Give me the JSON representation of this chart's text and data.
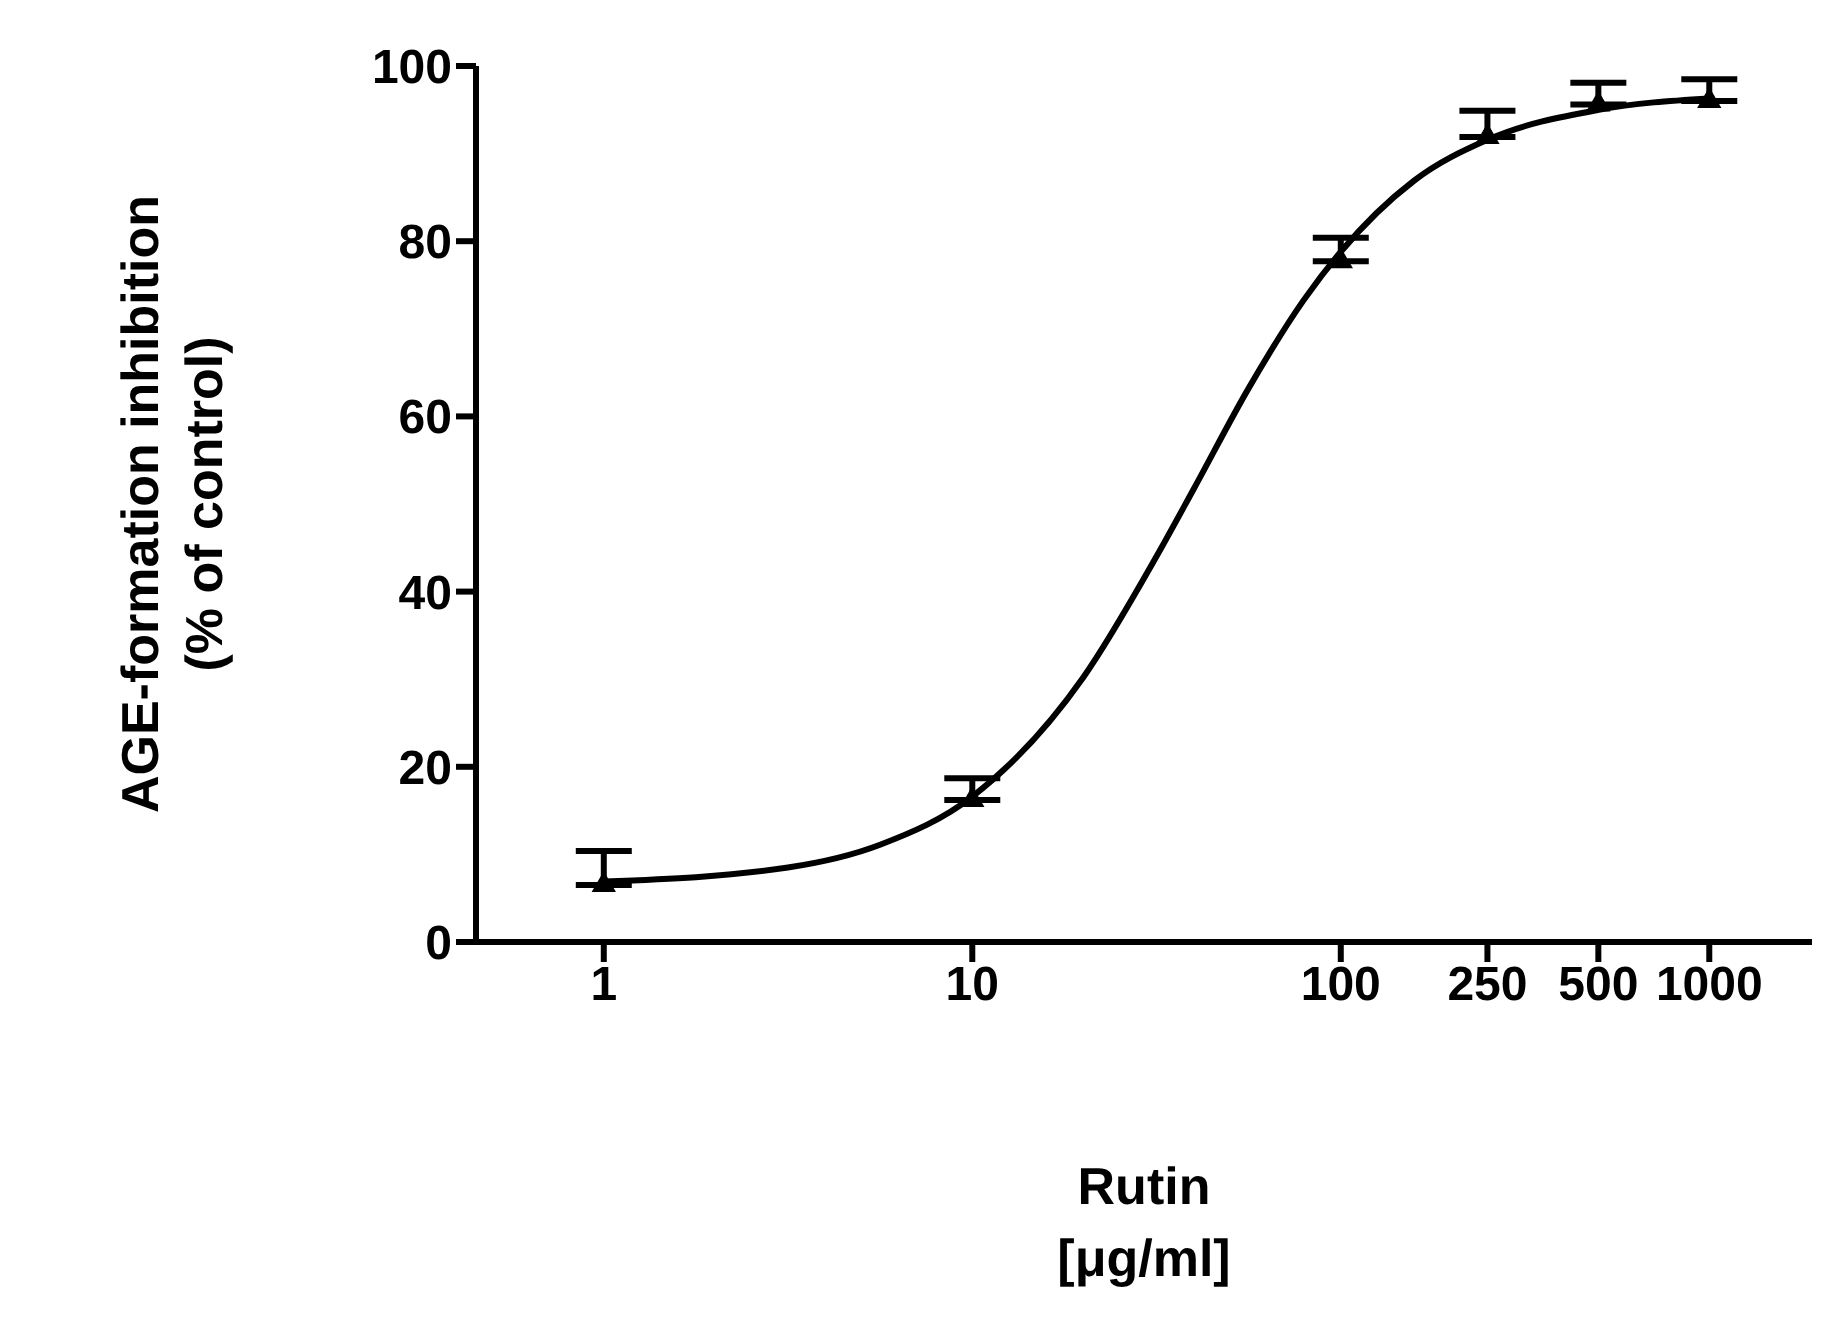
{
  "chart_data": {
    "type": "scatter",
    "xlabel": "Rutin\n[μg/ml]",
    "ylabel": "AGE-formation inhibition\n(% of control)",
    "log": "x",
    "x": [
      1,
      10,
      100,
      250,
      500,
      1000
    ],
    "xlim": [
      0.45,
      1900
    ],
    "xticks": [
      1,
      10,
      100,
      250,
      500,
      1000
    ],
    "ylim": [
      0,
      100
    ],
    "yticks": [
      0,
      20,
      40,
      60,
      80,
      100
    ],
    "series": [
      {
        "color": "#000000",
        "marker": "triangle",
        "values": [
          6.5,
          16.2,
          77.7,
          91.9,
          95.6,
          96
        ],
        "errors": [
          [
            6.5,
            10.4
          ],
          [
            16.2,
            18.7
          ],
          [
            77.7,
            80.4
          ],
          [
            91.9,
            94.9
          ],
          [
            95.6,
            98.1
          ],
          [
            96,
            98.5
          ]
        ]
      },
      {
        "type": "line",
        "color": "#000000",
        "line_style": "solid",
        "x": [
          1,
          3.16,
          5.62,
          10,
          20,
          31.6,
          40,
          56.2,
          79.4,
          100,
          158,
          251,
          501,
          1000
        ],
        "values": [
          6.9,
          8.5,
          11.1,
          16.6,
          30.2,
          44,
          51.8,
          63.2,
          73.3,
          78.8,
          86.9,
          91.6,
          95,
          96.3
        ]
      }
    ]
  }
}
